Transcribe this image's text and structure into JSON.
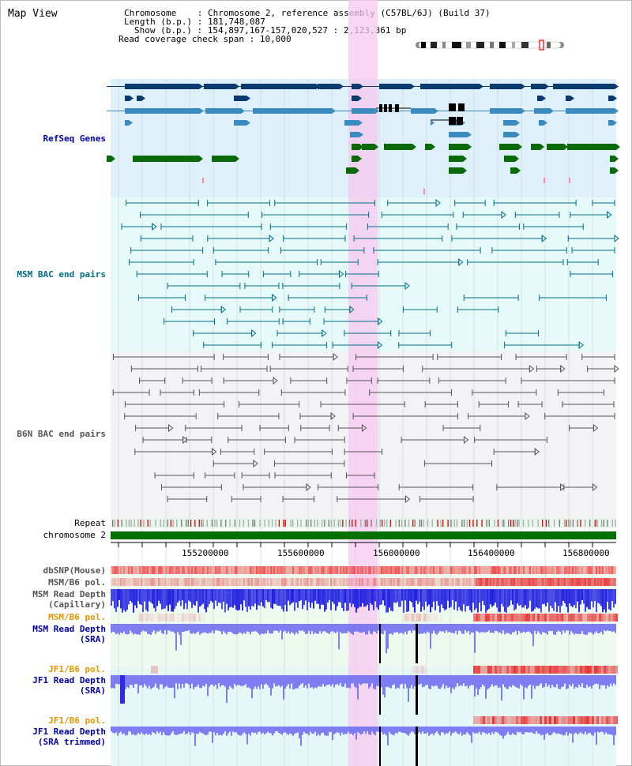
{
  "title": "Map View",
  "info": {
    "chromosome_key": "Chromosome",
    "chromosome_val": "Chromosome 2, reference assembly (C57BL/6J) (Build 37)",
    "length_key": "Length (b.p.)",
    "length_val": "181,748,087",
    "show_key": "Show (b.p.)",
    "show_val": "154,897,167-157,020,527 : 2,123,361 bp",
    "coverage_key": "Read coverage check span",
    "coverage_val": "10,000"
  },
  "tracks": {
    "refseq": "RefSeq Genes",
    "msm_bac": "MSM BAC end pairs",
    "b6n_bac": "B6N BAC end pairs",
    "repeat": "Repeat",
    "chromosome": "chromosome 2",
    "dbsnp": "dbSNP(Mouse)",
    "msm_b6_pol_1": "MSM/B6 pol.",
    "msm_depth_cap_1": "MSM Read Depth",
    "msm_depth_cap_2": "(Capillary)",
    "msm_b6_pol_2": "MSM/B6 pol.",
    "msm_depth_sra_1": "MSM Read Depth",
    "msm_depth_sra_2": "(SRA)",
    "jf1_pol_1": "JF1/B6 pol.",
    "jf1_depth_1": "JF1 Read Depth",
    "jf1_depth_2": "(SRA)",
    "jf1_pol_2": "JF1/B6 pol.",
    "jf1_trim_1": "JF1 Read Depth",
    "jf1_trim_2": "(SRA trimmed)"
  },
  "axis": {
    "ticks": [
      "155200000",
      "155600000",
      "156000000",
      "156400000",
      "156800000"
    ]
  },
  "colors": {
    "refseq_dark": "#0b3a6e",
    "refseq_mid": "#3b8bbf",
    "refseq_green": "#0a6a0a",
    "msm_bac": "#006e86",
    "b6n_bac": "#555555",
    "highlight": "#f7c8f0",
    "chromosome_bar": "#007000",
    "depth_blue": "#2020e0",
    "depth_sra": "#7070f0"
  }
}
